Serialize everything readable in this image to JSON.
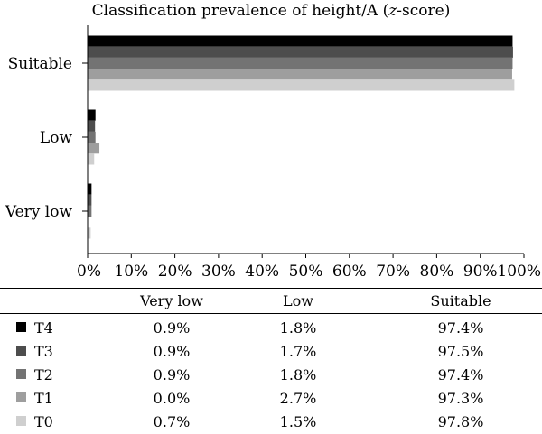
{
  "chart_data": {
    "type": "bar",
    "orientation": "horizontal",
    "title": "Classification prevalence of height/A (z-score)",
    "title_plain": "Classification prevalence of height/A (",
    "title_italic": "z",
    "title_suffix": "-score)",
    "categories": [
      "Very low",
      "Low",
      "Suitable"
    ],
    "xlim": [
      0,
      100
    ],
    "x_ticks": [
      "0%",
      "10%",
      "20%",
      "30%",
      "40%",
      "50%",
      "60%",
      "70%",
      "80%",
      "90%",
      "100%"
    ],
    "grid": false,
    "legend": "table-below",
    "series": [
      {
        "name": "T4",
        "color": "#000000",
        "values": [
          0.9,
          1.8,
          97.4
        ],
        "labels": [
          "0.9%",
          "1.8%",
          "97.4%"
        ]
      },
      {
        "name": "T3",
        "color": "#4d4d4d",
        "values": [
          0.9,
          1.7,
          97.5
        ],
        "labels": [
          "0.9%",
          "1.7%",
          "97.5%"
        ]
      },
      {
        "name": "T2",
        "color": "#737373",
        "values": [
          0.9,
          1.8,
          97.4
        ],
        "labels": [
          "0.9%",
          "1.8%",
          "97.4%"
        ]
      },
      {
        "name": "T1",
        "color": "#9e9e9e",
        "values": [
          0.0,
          2.7,
          97.3
        ],
        "labels": [
          "0.0%",
          "2.7%",
          "97.3%"
        ]
      },
      {
        "name": "T0",
        "color": "#cfcfcf",
        "values": [
          0.7,
          1.5,
          97.8
        ],
        "labels": [
          "0.7%",
          "1.5%",
          "97.8%"
        ]
      }
    ]
  }
}
